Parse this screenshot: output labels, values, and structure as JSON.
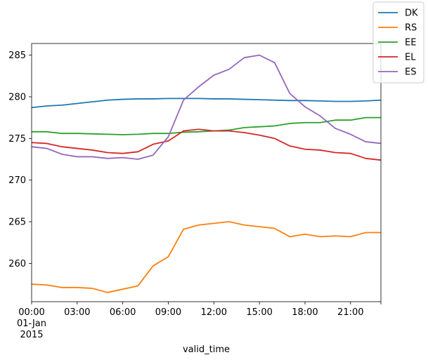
{
  "chart_data": {
    "type": "line",
    "xlabel": "valid_time",
    "ylabel": "",
    "x": [
      0,
      1,
      2,
      3,
      4,
      5,
      6,
      7,
      8,
      9,
      10,
      11,
      12,
      13,
      14,
      15,
      16,
      17,
      18,
      19,
      20,
      21,
      22,
      23
    ],
    "xlim": [
      0,
      23
    ],
    "ylim": [
      255.4,
      286.4
    ],
    "x_ticks": [
      {
        "x": 0,
        "lines": [
          "00:00",
          "01-Jan",
          "2015"
        ]
      },
      {
        "x": 3,
        "lines": [
          "03:00"
        ]
      },
      {
        "x": 6,
        "lines": [
          "06:00"
        ]
      },
      {
        "x": 9,
        "lines": [
          "09:00"
        ]
      },
      {
        "x": 12,
        "lines": [
          "12:00"
        ]
      },
      {
        "x": 15,
        "lines": [
          "15:00"
        ]
      },
      {
        "x": 18,
        "lines": [
          "18:00"
        ]
      },
      {
        "x": 21,
        "lines": [
          "21:00"
        ]
      }
    ],
    "y_ticks": [
      260,
      265,
      270,
      275,
      280,
      285
    ],
    "legend_position": "top-right",
    "grid": false,
    "series": [
      {
        "name": "DK",
        "color": "#1f77b4",
        "values": [
          278.7,
          278.9,
          279.0,
          279.2,
          279.4,
          279.6,
          279.7,
          279.75,
          279.75,
          279.8,
          279.8,
          279.8,
          279.75,
          279.75,
          279.7,
          279.65,
          279.6,
          279.55,
          279.55,
          279.5,
          279.45,
          279.45,
          279.5,
          279.6
        ]
      },
      {
        "name": "RS",
        "color": "#ff7f0e",
        "values": [
          257.5,
          257.4,
          257.1,
          257.1,
          257.0,
          256.5,
          256.9,
          257.3,
          259.7,
          260.8,
          264.1,
          264.6,
          264.8,
          265.0,
          264.6,
          264.4,
          264.2,
          263.2,
          263.5,
          263.2,
          263.3,
          263.2,
          263.7,
          263.7
        ]
      },
      {
        "name": "EE",
        "color": "#2ca02c",
        "values": [
          275.8,
          275.8,
          275.6,
          275.6,
          275.55,
          275.5,
          275.45,
          275.5,
          275.6,
          275.6,
          275.75,
          275.8,
          275.9,
          276.0,
          276.3,
          276.4,
          276.5,
          276.8,
          276.9,
          276.9,
          277.2,
          277.2,
          277.5,
          277.5
        ]
      },
      {
        "name": "EL",
        "color": "#d62728",
        "values": [
          274.5,
          274.4,
          274.0,
          273.8,
          273.6,
          273.3,
          273.2,
          273.4,
          274.3,
          274.7,
          275.9,
          276.1,
          275.9,
          275.9,
          275.7,
          275.4,
          275.0,
          274.1,
          273.7,
          273.6,
          273.3,
          273.2,
          272.6,
          272.4
        ]
      },
      {
        "name": "ES",
        "color": "#9467bd",
        "values": [
          274.0,
          273.8,
          273.1,
          272.8,
          272.8,
          272.6,
          272.7,
          272.5,
          273.0,
          275.2,
          279.6,
          281.2,
          282.6,
          283.3,
          284.7,
          285.0,
          284.1,
          280.4,
          278.8,
          277.7,
          276.2,
          275.5,
          274.6,
          274.4
        ]
      }
    ]
  }
}
